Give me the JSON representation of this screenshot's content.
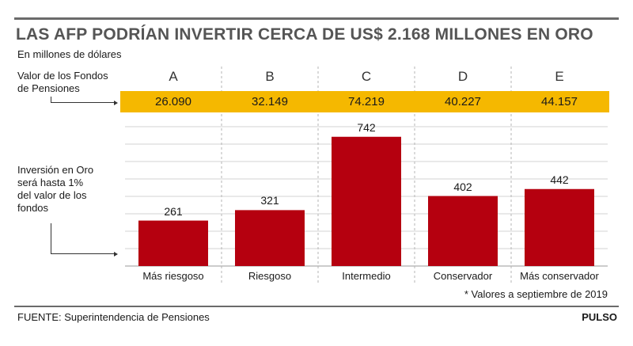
{
  "header": {
    "title": "LAS AFP PODRÍAN INVERTIR CERCA DE US$ 2.168 MILLONES EN ORO",
    "subtitle": "En millones de dólares"
  },
  "labels": {
    "fondos_line1": "Valor de los Fondos",
    "fondos_line2": "de Pensiones",
    "oro_line1": "Inversión en Oro",
    "oro_line2": "será hasta 1%",
    "oro_line3": "del valor de los",
    "oro_line4": "fondos"
  },
  "funds": [
    {
      "letter": "A",
      "value": "26.090"
    },
    {
      "letter": "B",
      "value": "32.149"
    },
    {
      "letter": "C",
      "value": "74.219"
    },
    {
      "letter": "D",
      "value": "40.227"
    },
    {
      "letter": "E",
      "value": "44.157"
    }
  ],
  "chart_data": {
    "type": "bar",
    "categories": [
      "Más riesgoso",
      "Riesgoso",
      "Intermedio",
      "Conservador",
      "Más conservador"
    ],
    "values": [
      261,
      321,
      742,
      402,
      442
    ],
    "value_labels": [
      "261",
      "321",
      "742",
      "402",
      "442"
    ],
    "ylim": [
      0,
      800
    ],
    "grid": true,
    "colors": {
      "bar": "#b5000f",
      "band": "#f5b800"
    }
  },
  "footer": {
    "note": "* Valores a septiembre de 2019",
    "source": "FUENTE: Superintendencia de Pensiones",
    "brand": "PULSO"
  }
}
